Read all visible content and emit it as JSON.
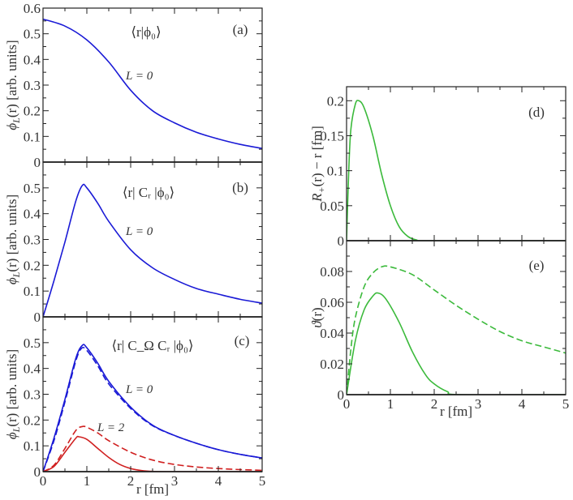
{
  "colors": {
    "blue": "#1a1ad6",
    "red": "#d02020",
    "green": "#3cba3c",
    "axis": "#222222"
  },
  "chart_data": [
    {
      "id": "a",
      "type": "line",
      "panel_label": "(a)",
      "annotation": "⟨r|ϕ₀⟩",
      "curve_label": "L = 0",
      "ylabel": {
        "sym": "ϕ",
        "sub": "L",
        "rest": "(r)  [arb. units]"
      },
      "xlabel": "",
      "xlim": [
        0,
        5
      ],
      "ylim": [
        0,
        0.6
      ],
      "xticks": [
        0,
        1,
        2,
        3,
        4,
        5
      ],
      "xtick_labels": [],
      "yticks": [
        0,
        0.1,
        0.2,
        0.3,
        0.4,
        0.5,
        0.6
      ],
      "ytick_labels": [
        "0",
        "0.1",
        "0.2",
        "0.3",
        "0.4",
        "0.5",
        "0.6"
      ],
      "series": [
        {
          "color": "blue",
          "dash": false,
          "x": [
            0,
            0.5,
            1,
            1.5,
            2,
            2.5,
            3,
            3.5,
            4,
            4.5,
            5
          ],
          "y": [
            0.557,
            0.53,
            0.476,
            0.39,
            0.28,
            0.2,
            0.153,
            0.116,
            0.09,
            0.069,
            0.053
          ]
        }
      ]
    },
    {
      "id": "b",
      "type": "line",
      "panel_label": "(b)",
      "annotation": "⟨r| Cᵣ |ϕ₀⟩",
      "curve_label": "L = 0",
      "ylabel": {
        "sym": "ϕ",
        "sub": "L",
        "rest": "(r)  [arb. units]"
      },
      "xlabel": "",
      "xlim": [
        0,
        5
      ],
      "ylim": [
        0,
        0.6
      ],
      "xticks": [
        0,
        1,
        2,
        3,
        4,
        5
      ],
      "xtick_labels": [],
      "yticks": [
        0,
        0.1,
        0.2,
        0.3,
        0.4,
        0.5
      ],
      "ytick_labels": [
        "0",
        "0.1",
        "0.2",
        "0.3",
        "0.4",
        "0.5"
      ],
      "series": [
        {
          "color": "blue",
          "dash": false,
          "x": [
            0,
            0.25,
            0.5,
            0.75,
            0.9,
            1.0,
            1.25,
            1.5,
            2,
            2.5,
            3,
            3.5,
            4,
            4.5,
            5
          ],
          "y": [
            0,
            0.14,
            0.29,
            0.45,
            0.51,
            0.5,
            0.44,
            0.37,
            0.26,
            0.19,
            0.145,
            0.11,
            0.088,
            0.068,
            0.053
          ]
        }
      ]
    },
    {
      "id": "c",
      "type": "line",
      "panel_label": "(c)",
      "annotation": "⟨r| C_Ω Cᵣ |ϕ₀⟩",
      "curve_label": "L = 0",
      "curve_label_2": "L = 2",
      "ylabel": {
        "sym": "ϕ",
        "sub": "L",
        "rest": "(r)  [arb. units]"
      },
      "xlabel": "r  [fm]",
      "xlim": [
        0,
        5
      ],
      "ylim": [
        0,
        0.6
      ],
      "xticks": [
        0,
        1,
        2,
        3,
        4,
        5
      ],
      "xtick_labels": [
        "0",
        "1",
        "2",
        "3",
        "4",
        "5"
      ],
      "yticks": [
        0,
        0.1,
        0.2,
        0.3,
        0.4,
        0.5
      ],
      "ytick_labels": [
        "0",
        "0.1",
        "0.2",
        "0.3",
        "0.4",
        "0.5"
      ],
      "series": [
        {
          "color": "blue",
          "dash": false,
          "x": [
            0,
            0.25,
            0.5,
            0.75,
            0.9,
            1.0,
            1.25,
            1.5,
            2,
            2.5,
            3,
            3.5,
            4,
            4.5,
            5
          ],
          "y": [
            0,
            0.13,
            0.28,
            0.44,
            0.49,
            0.48,
            0.42,
            0.35,
            0.25,
            0.18,
            0.14,
            0.11,
            0.085,
            0.067,
            0.053
          ]
        },
        {
          "color": "blue",
          "dash": true,
          "x": [
            0,
            0.25,
            0.5,
            0.75,
            0.88,
            1.0,
            1.25,
            1.5,
            2,
            2.5,
            3,
            3.5,
            4,
            4.5,
            5
          ],
          "y": [
            0,
            0.12,
            0.27,
            0.43,
            0.478,
            0.47,
            0.41,
            0.34,
            0.245,
            0.178,
            0.14,
            0.11,
            0.085,
            0.067,
            0.053
          ]
        },
        {
          "color": "red",
          "dash": false,
          "x": [
            0,
            0.25,
            0.5,
            0.75,
            0.82,
            1.0,
            1.25,
            1.5,
            1.75,
            2,
            2.25,
            2.5,
            3,
            5
          ],
          "y": [
            0,
            0.02,
            0.075,
            0.13,
            0.135,
            0.125,
            0.09,
            0.055,
            0.028,
            0.012,
            0.004,
            0.001,
            0,
            0
          ]
        },
        {
          "color": "red",
          "dash": true,
          "x": [
            0,
            0.25,
            0.5,
            0.75,
            0.9,
            1.0,
            1.25,
            1.5,
            2,
            2.5,
            3,
            3.5,
            4,
            4.5,
            5
          ],
          "y": [
            0,
            0.025,
            0.09,
            0.16,
            0.175,
            0.172,
            0.15,
            0.12,
            0.075,
            0.045,
            0.028,
            0.018,
            0.012,
            0.008,
            0.005
          ]
        }
      ]
    },
    {
      "id": "d",
      "type": "line",
      "panel_label": "(d)",
      "ylabel": {
        "sym": "R",
        "sub": "+",
        "rest": "(r) − r  [fm]"
      },
      "xlabel": "",
      "xlim": [
        0,
        5
      ],
      "ylim": [
        0,
        0.22
      ],
      "xticks": [
        0,
        1,
        2,
        3,
        4,
        5
      ],
      "xtick_labels": [],
      "yticks": [
        0,
        0.05,
        0.1,
        0.15,
        0.2
      ],
      "ytick_labels": [
        "0",
        "0.05",
        "0.1",
        "0.15",
        "0.2"
      ],
      "series": [
        {
          "color": "green",
          "dash": false,
          "x": [
            0,
            0.05,
            0.1,
            0.2,
            0.28,
            0.4,
            0.6,
            0.8,
            1.0,
            1.2,
            1.4,
            1.6,
            1.8,
            5
          ],
          "y": [
            0,
            0.1,
            0.16,
            0.195,
            0.2,
            0.19,
            0.15,
            0.095,
            0.05,
            0.02,
            0.006,
            0.001,
            0,
            0
          ]
        }
      ]
    },
    {
      "id": "e",
      "type": "line",
      "panel_label": "(e)",
      "ylabel": {
        "sym": "ϑ",
        "sub": "",
        "rest": "(r)"
      },
      "xlabel": "r  [fm]",
      "xlim": [
        0,
        5
      ],
      "ylim": [
        0,
        0.1
      ],
      "xticks": [
        0,
        1,
        2,
        3,
        4,
        5
      ],
      "xtick_labels": [
        "0",
        "1",
        "2",
        "3",
        "4",
        "5"
      ],
      "yticks": [
        0,
        0.02,
        0.04,
        0.06,
        0.08
      ],
      "ytick_labels": [
        "0",
        "0.02",
        "0.04",
        "0.06",
        "0.08"
      ],
      "series": [
        {
          "color": "green",
          "dash": false,
          "x": [
            0,
            0.2,
            0.4,
            0.6,
            0.72,
            0.9,
            1.2,
            1.5,
            1.8,
            2.0,
            2.3,
            2.6,
            5
          ],
          "y": [
            0,
            0.035,
            0.055,
            0.064,
            0.066,
            0.062,
            0.047,
            0.028,
            0.013,
            0.007,
            0.002,
            0,
            0
          ]
        },
        {
          "color": "green",
          "dash": true,
          "x": [
            0,
            0.1,
            0.2,
            0.4,
            0.6,
            0.8,
            1.0,
            1.5,
            2,
            2.5,
            3,
            3.5,
            4,
            4.5,
            5
          ],
          "y": [
            0,
            0.03,
            0.05,
            0.07,
            0.079,
            0.083,
            0.083,
            0.078,
            0.068,
            0.058,
            0.049,
            0.041,
            0.035,
            0.031,
            0.027
          ]
        }
      ]
    }
  ]
}
